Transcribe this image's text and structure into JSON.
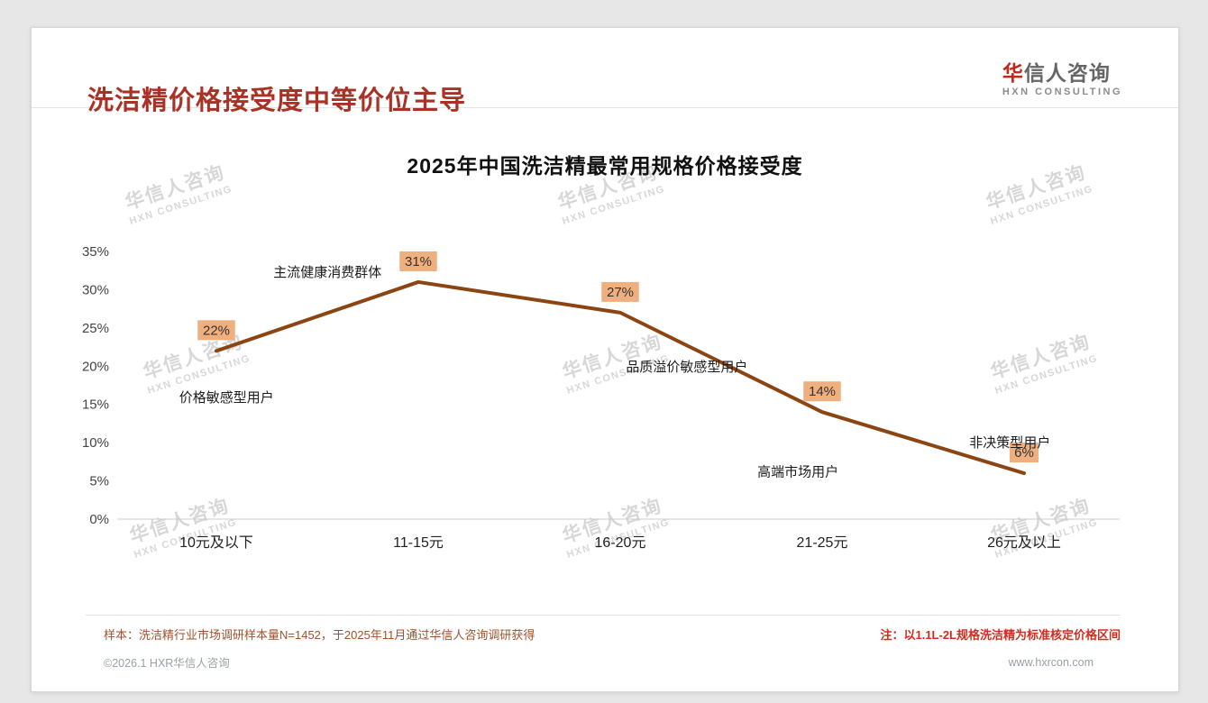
{
  "header": {
    "title": "洗洁精价格接受度中等价位主导",
    "logo": {
      "cn_first": "华",
      "cn_rest": "信人咨询",
      "en": "HXN CONSULTING"
    }
  },
  "watermark": {
    "cn": "华信人咨询",
    "en": "HXN CONSULTING"
  },
  "chart_data": {
    "type": "line",
    "title": "2025年中国洗洁精最常用规格价格接受度",
    "categories": [
      "10元及以下",
      "11-15元",
      "16-20元",
      "21-25元",
      "26元及以上"
    ],
    "values": [
      22,
      31,
      27,
      14,
      6
    ],
    "data_labels": [
      "22%",
      "31%",
      "27%",
      "14%",
      "6%"
    ],
    "xlabel": "",
    "ylabel": "",
    "ylim": [
      0,
      35
    ],
    "ytick_step": 5,
    "ytick_labels": [
      "0%",
      "5%",
      "10%",
      "15%",
      "20%",
      "25%",
      "30%",
      "35%"
    ],
    "grid": false,
    "legend": "none",
    "line_color": "#8B4513",
    "data_label_bg": "#F0AF7E",
    "annotations": [
      {
        "text": "价格敏感型用户",
        "xi": 0.05,
        "y": 15.9
      },
      {
        "text": "主流健康消费群体",
        "xi": 0.55,
        "y": 32.3
      },
      {
        "text": "品质溢价敏感型用户",
        "xi": 2.33,
        "y": 19.9
      },
      {
        "text": "高端市场用户",
        "xi": 2.88,
        "y": 6.2
      },
      {
        "text": "非决策型用户",
        "xi": 3.93,
        "y": 10.0
      }
    ]
  },
  "footer": {
    "sample_note": "样本：洗洁精行业市场调研样本量N=1452，于2025年11月通过华信人咨询调研获得",
    "price_note": "注：以1.1L-2L规格洗洁精为标准核定价格区间",
    "copyright": "©2026.1 HXR华信人咨询",
    "website": "www.hxrcon.com"
  },
  "colors": {
    "title_accent": "#A93226",
    "line": "#8B4513",
    "data_label_bg": "#F0AF7E",
    "note_red": "#D52B1E",
    "note_brown": "#A0522D"
  }
}
